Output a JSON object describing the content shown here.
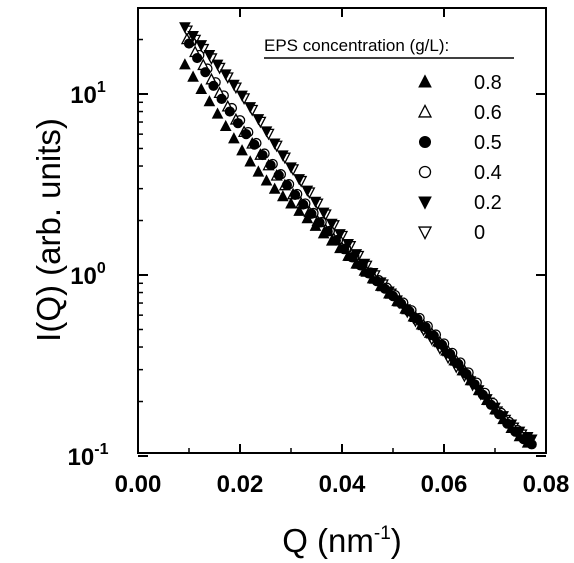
{
  "chart_data": {
    "type": "scatter",
    "xlabel": "Q (nm",
    "xlabel_sup": "-1",
    "xlabel_end": ")",
    "ylabel": "I(Q) (arb. units)",
    "x_ticks": [
      "0.00",
      "0.02",
      "0.04",
      "0.06",
      "0.08"
    ],
    "y_ticks": [
      {
        "base": "10",
        "exp": "-1",
        "value": 0.1
      },
      {
        "base": "10",
        "exp": "0",
        "value": 1
      },
      {
        "base": "10",
        "exp": "1",
        "value": 10
      }
    ],
    "xlim": [
      0.0,
      0.08
    ],
    "ylim": [
      0.1,
      27
    ],
    "y_scale": "log",
    "grid": false,
    "legend": {
      "title": "EPS concentration (g/L):",
      "placement": "top-right"
    },
    "series": [
      {
        "name": "0.8",
        "marker": "triangle-up-filled",
        "color": "#000000",
        "x": [
          0.0092,
          0.0108,
          0.0124,
          0.014,
          0.0156,
          0.0172,
          0.0188,
          0.0204,
          0.022,
          0.0236,
          0.0252,
          0.0268,
          0.0284,
          0.03,
          0.0316,
          0.0332,
          0.0348,
          0.0364,
          0.038,
          0.0396,
          0.0412,
          0.0428,
          0.0444,
          0.046,
          0.0476,
          0.0492,
          0.0508,
          0.0524,
          0.054,
          0.0556,
          0.0572,
          0.0588,
          0.0604,
          0.062,
          0.0636,
          0.0652,
          0.0668,
          0.0684,
          0.07,
          0.0716,
          0.0732,
          0.0748,
          0.0764
        ],
        "y": [
          14.5,
          12.4,
          10.6,
          9.07,
          7.75,
          6.62,
          5.66,
          4.86,
          4.22,
          3.71,
          3.31,
          2.98,
          2.71,
          2.47,
          2.25,
          2.05,
          1.86,
          1.69,
          1.54,
          1.4,
          1.27,
          1.15,
          1.05,
          0.953,
          0.866,
          0.787,
          0.714,
          0.648,
          0.587,
          0.53,
          0.477,
          0.427,
          0.38,
          0.336,
          0.296,
          0.261,
          0.23,
          0.203,
          0.18,
          0.159,
          0.142,
          0.128,
          0.118
        ]
      },
      {
        "name": "0.6",
        "marker": "triangle-up-open",
        "color": "#000000",
        "x": [
          0.0096,
          0.0112,
          0.0128,
          0.0144,
          0.016,
          0.0176,
          0.0192,
          0.0208,
          0.0224,
          0.024,
          0.0256,
          0.0272,
          0.0288,
          0.0304,
          0.032,
          0.0336,
          0.0352,
          0.0368,
          0.0384,
          0.04,
          0.0416,
          0.0432,
          0.0448,
          0.0464,
          0.048,
          0.0496,
          0.0512,
          0.0528,
          0.0544,
          0.056,
          0.0576,
          0.0592,
          0.0608,
          0.0624,
          0.064,
          0.0656,
          0.0672,
          0.0688,
          0.0704,
          0.072,
          0.0736,
          0.0752,
          0.0768
        ],
        "y": [
          20.0,
          17.0,
          14.4,
          12.0,
          10.1,
          8.5,
          7.2,
          6.15,
          5.3,
          4.6,
          4.02,
          3.53,
          3.12,
          2.78,
          2.48,
          2.22,
          1.98,
          1.77,
          1.58,
          1.41,
          1.27,
          1.15,
          1.04,
          0.95,
          0.864,
          0.785,
          0.712,
          0.645,
          0.584,
          0.527,
          0.474,
          0.424,
          0.378,
          0.335,
          0.296,
          0.261,
          0.23,
          0.203,
          0.18,
          0.16,
          0.143,
          0.13,
          0.12
        ]
      },
      {
        "name": "0.5",
        "marker": "circle-filled",
        "color": "#000000",
        "x": [
          0.01,
          0.0116,
          0.0132,
          0.0148,
          0.0164,
          0.018,
          0.0196,
          0.0212,
          0.0228,
          0.0244,
          0.026,
          0.0276,
          0.0292,
          0.0308,
          0.0324,
          0.034,
          0.0356,
          0.0372,
          0.0388,
          0.0404,
          0.042,
          0.0436,
          0.0452,
          0.0468,
          0.0484,
          0.05,
          0.0516,
          0.0532,
          0.0548,
          0.0564,
          0.058,
          0.0596,
          0.0612,
          0.0628,
          0.0644,
          0.066,
          0.0676,
          0.0692,
          0.0708,
          0.0724,
          0.074,
          0.0756,
          0.0772
        ],
        "y": [
          19.0,
          15.8,
          13.2,
          11.1,
          9.4,
          8.0,
          6.9,
          6.0,
          5.25,
          4.6,
          4.05,
          3.56,
          3.14,
          2.77,
          2.45,
          2.18,
          1.95,
          1.74,
          1.55,
          1.39,
          1.25,
          1.13,
          1.02,
          0.925,
          0.84,
          0.764,
          0.695,
          0.631,
          0.571,
          0.515,
          0.462,
          0.412,
          0.366,
          0.323,
          0.284,
          0.249,
          0.218,
          0.192,
          0.17,
          0.151,
          0.136,
          0.124,
          0.116
        ]
      },
      {
        "name": "0.4",
        "marker": "circle-open",
        "color": "#000000",
        "x": [
          0.0104,
          0.012,
          0.0136,
          0.0152,
          0.0168,
          0.0184,
          0.02,
          0.0216,
          0.0232,
          0.0248,
          0.0264,
          0.028,
          0.0296,
          0.0312,
          0.0328,
          0.0344,
          0.036,
          0.0376,
          0.0392,
          0.0408,
          0.0424,
          0.044,
          0.0456,
          0.0472,
          0.0488,
          0.0504,
          0.052,
          0.0536,
          0.0552,
          0.0568,
          0.0584,
          0.06,
          0.0616,
          0.0632,
          0.0648,
          0.0664,
          0.068,
          0.0696,
          0.0712,
          0.0728,
          0.0744,
          0.076
        ],
        "y": [
          19.5,
          16.4,
          13.8,
          11.6,
          9.8,
          8.35,
          7.15,
          6.15,
          5.35,
          4.68,
          4.1,
          3.6,
          3.17,
          2.8,
          2.48,
          2.2,
          1.96,
          1.75,
          1.56,
          1.4,
          1.26,
          1.14,
          1.03,
          0.935,
          0.85,
          0.773,
          0.703,
          0.638,
          0.578,
          0.521,
          0.468,
          0.418,
          0.371,
          0.328,
          0.289,
          0.254,
          0.223,
          0.196,
          0.173,
          0.154,
          0.139,
          0.127
        ]
      },
      {
        "name": "0.2",
        "marker": "triangle-down-filled",
        "color": "#000000",
        "x": [
          0.0092,
          0.0108,
          0.0124,
          0.014,
          0.0156,
          0.0172,
          0.0188,
          0.0204,
          0.022,
          0.0236,
          0.0252,
          0.0268,
          0.0284,
          0.03,
          0.0316,
          0.0332,
          0.0348,
          0.0364,
          0.038,
          0.0396,
          0.0412,
          0.0428,
          0.0444,
          0.046,
          0.0476,
          0.0492,
          0.0508,
          0.0524,
          0.054,
          0.0556,
          0.0572,
          0.0588,
          0.0604,
          0.062,
          0.0636,
          0.0652,
          0.0668,
          0.0684,
          0.07,
          0.0716,
          0.0732,
          0.0748,
          0.0764,
          0.0772
        ],
        "y": [
          23.5,
          21.0,
          18.7,
          16.5,
          14.6,
          12.9,
          11.3,
          9.85,
          8.5,
          7.3,
          6.25,
          5.35,
          4.6,
          3.95,
          3.4,
          2.94,
          2.55,
          2.22,
          1.93,
          1.69,
          1.49,
          1.31,
          1.16,
          1.03,
          0.915,
          0.815,
          0.728,
          0.65,
          0.58,
          0.518,
          0.462,
          0.412,
          0.367,
          0.327,
          0.291,
          0.26,
          0.232,
          0.207,
          0.186,
          0.167,
          0.15,
          0.137,
          0.128,
          0.124
        ]
      },
      {
        "name": "0",
        "marker": "triangle-down-open",
        "color": "#000000",
        "x": [
          0.0096,
          0.0112,
          0.0128,
          0.0144,
          0.016,
          0.0176,
          0.0192,
          0.0208,
          0.0224,
          0.024,
          0.0256,
          0.0272,
          0.0288,
          0.0304,
          0.032,
          0.0336,
          0.0352,
          0.0368,
          0.0384,
          0.04,
          0.0416,
          0.0432,
          0.0448,
          0.0464,
          0.048,
          0.0496,
          0.0512,
          0.0528,
          0.0544,
          0.056,
          0.0576,
          0.0592,
          0.0608,
          0.0624,
          0.064,
          0.0656,
          0.0672,
          0.0688,
          0.0704,
          0.072,
          0.0736,
          0.0752,
          0.0768
        ],
        "y": [
          22.5,
          20.0,
          17.8,
          15.8,
          14.0,
          12.4,
          10.9,
          9.5,
          8.2,
          7.05,
          6.05,
          5.2,
          4.47,
          3.85,
          3.32,
          2.87,
          2.49,
          2.17,
          1.89,
          1.65,
          1.45,
          1.28,
          1.13,
          1.0,
          0.89,
          0.792,
          0.706,
          0.629,
          0.56,
          0.499,
          0.444,
          0.395,
          0.351,
          0.312,
          0.278,
          0.248,
          0.221,
          0.198,
          0.177,
          0.159,
          0.144,
          0.132,
          0.123
        ]
      }
    ]
  }
}
